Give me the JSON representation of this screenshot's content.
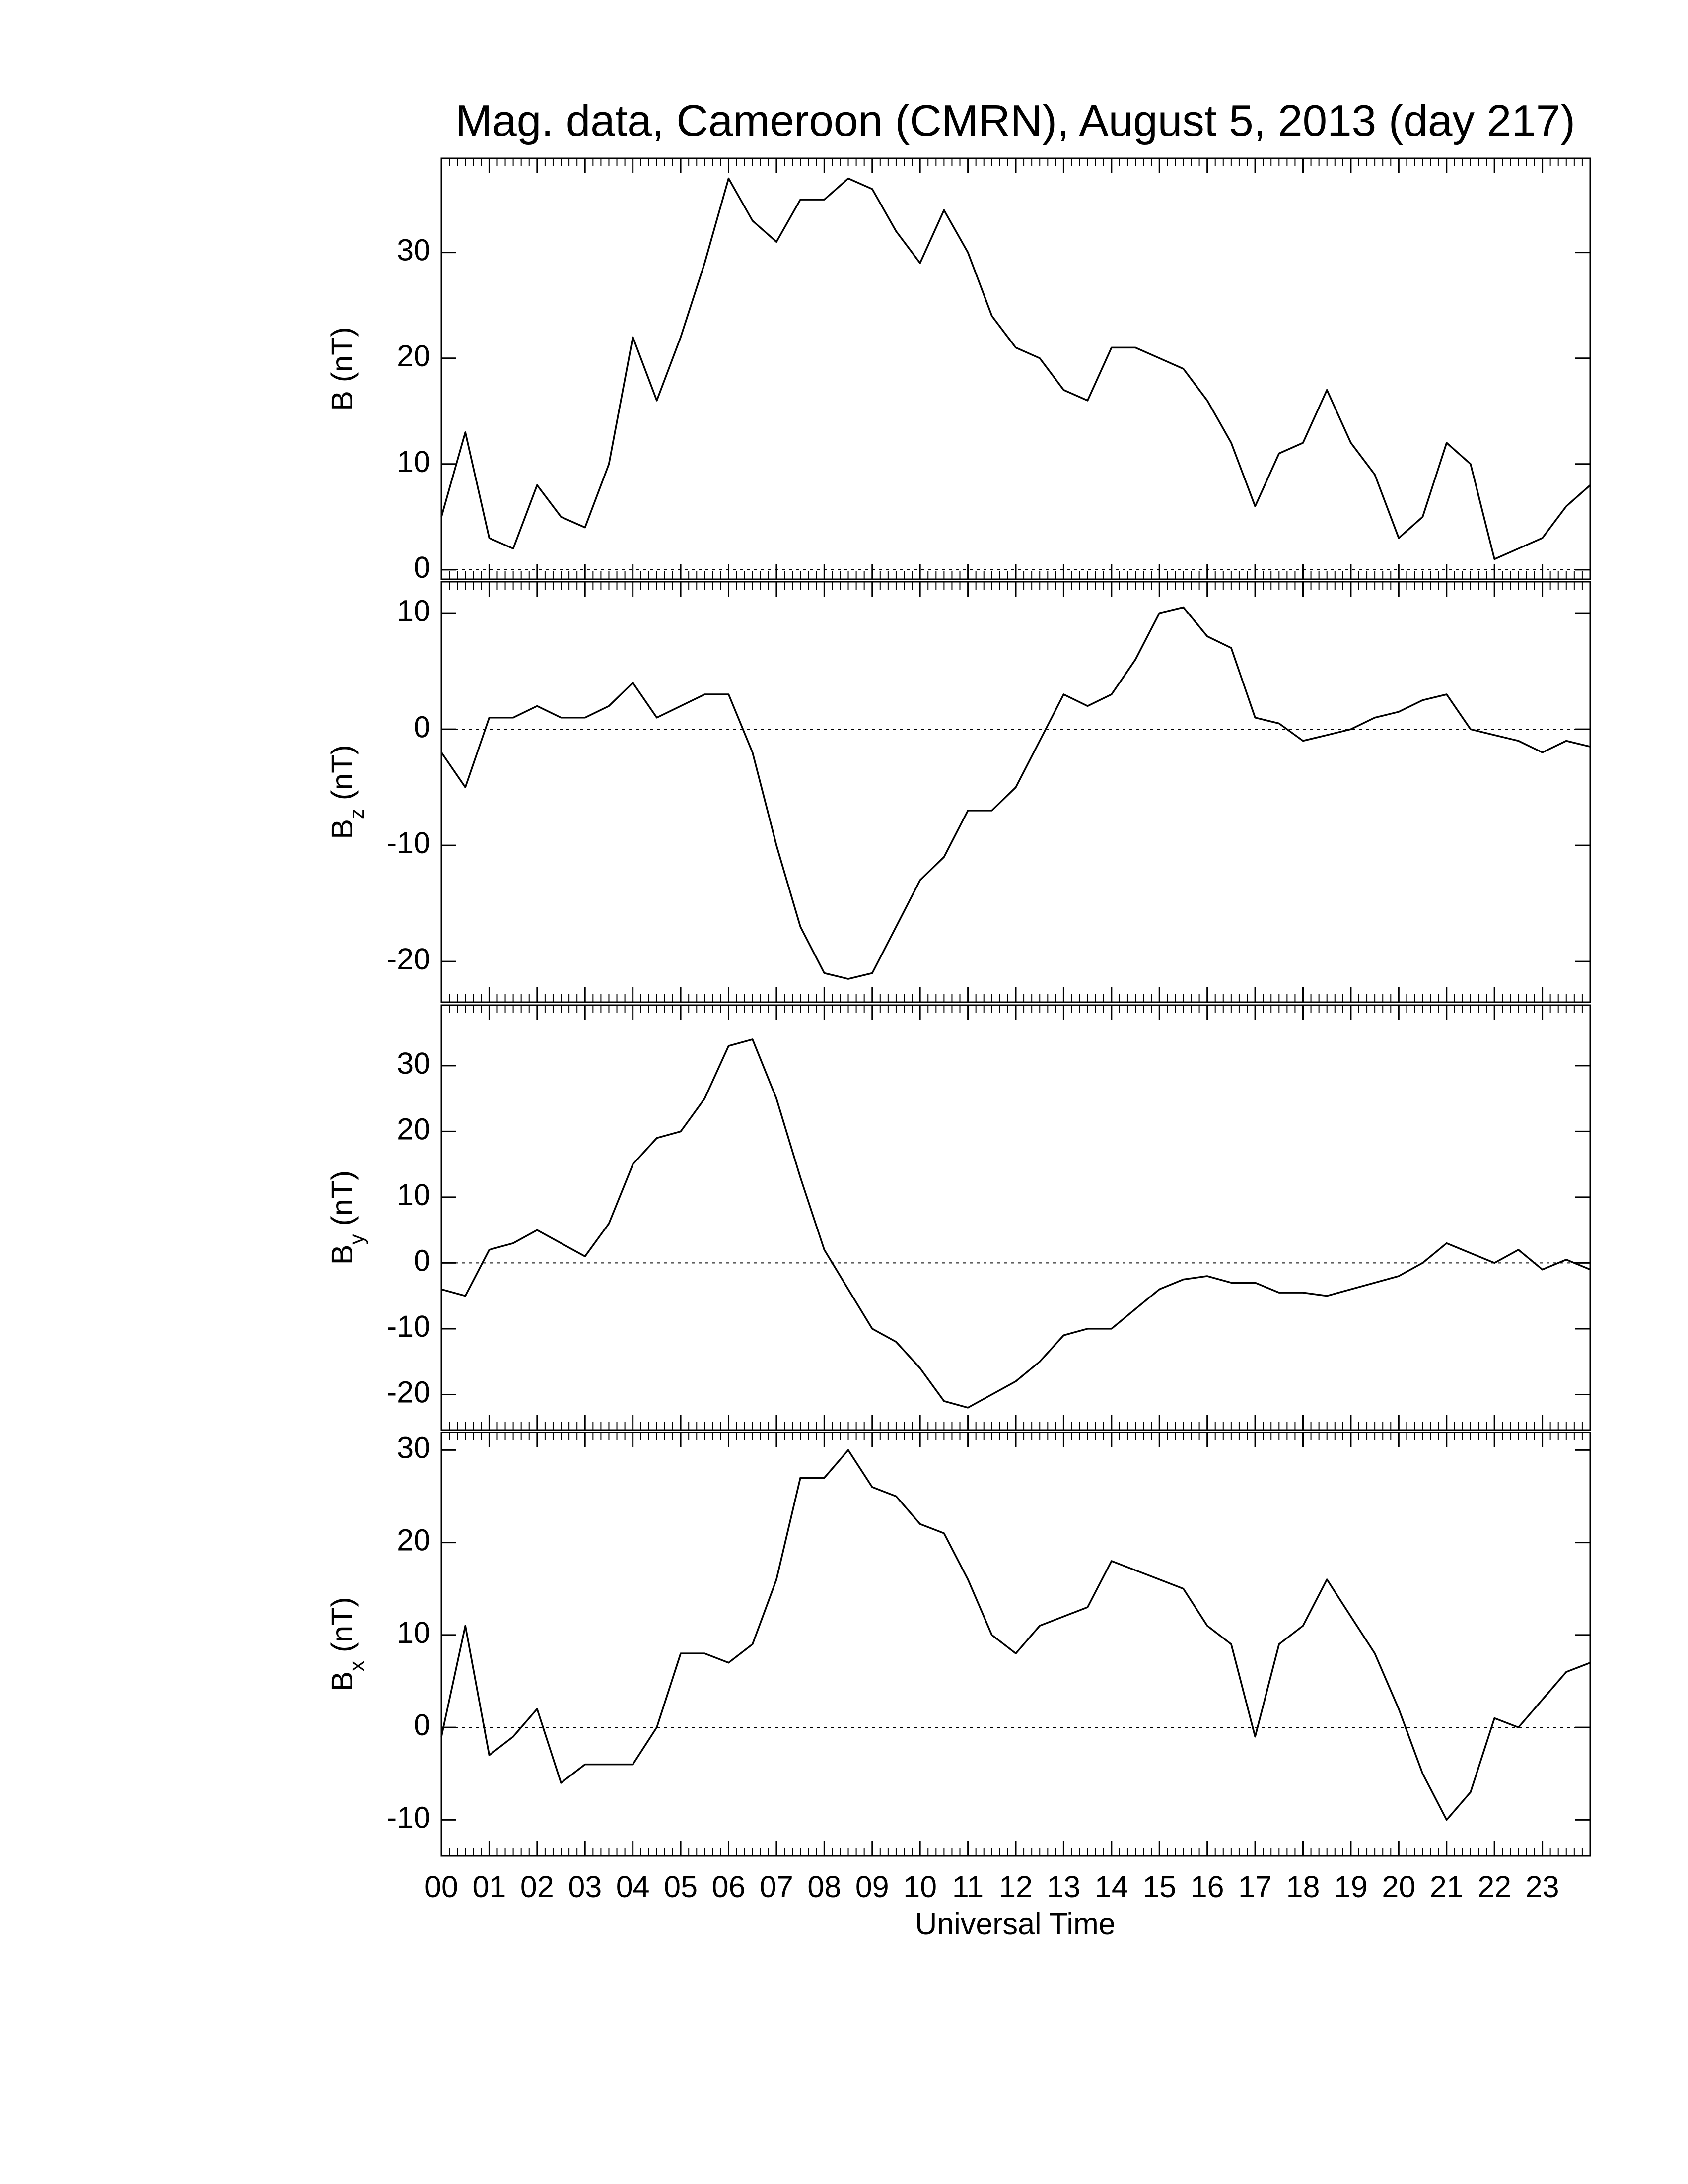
{
  "chart_data": [
    {
      "type": "line",
      "title": "Mag. data, Cameroon (CMRN), August 5, 2013 (day 217)",
      "ylabel": "B (nT)",
      "color": "#000000",
      "hline": 0,
      "x": [
        0,
        0.5,
        1,
        1.5,
        2,
        2.5,
        3,
        3.5,
        4,
        4.5,
        5,
        5.5,
        6,
        6.5,
        7,
        7.5,
        8,
        8.5,
        9,
        9.5,
        10,
        10.5,
        11,
        11.5,
        12,
        12.5,
        13,
        13.5,
        14,
        14.5,
        15,
        15.5,
        16,
        16.5,
        17,
        17.5,
        18,
        18.5,
        19,
        19.5,
        20,
        20.5,
        21,
        21.5,
        22,
        22.5,
        23,
        23.5,
        24
      ],
      "values": [
        5,
        13,
        3,
        2,
        8,
        5,
        4,
        10,
        22,
        16,
        22,
        29,
        37,
        33,
        31,
        35,
        35,
        37,
        36,
        32,
        29,
        34,
        30,
        24,
        21,
        20,
        17,
        16,
        21,
        21,
        20,
        19,
        16,
        12,
        6,
        11,
        12,
        17,
        12,
        9,
        3,
        5,
        12,
        10,
        1,
        2,
        3,
        6,
        8
      ],
      "xlim": [
        0,
        24
      ],
      "ylim": [
        -0.9,
        38.9
      ],
      "yticks": [
        0,
        10,
        20,
        30
      ]
    },
    {
      "type": "line",
      "ylabel": "B",
      "ylabel_sub": "z",
      "ylabel_unit": "(nT)",
      "color": "#000000",
      "hline": 0,
      "x": [
        0,
        0.5,
        1,
        1.5,
        2,
        2.5,
        3,
        3.5,
        4,
        4.5,
        5,
        5.5,
        6,
        6.5,
        7,
        7.5,
        8,
        8.5,
        9,
        9.5,
        10,
        10.5,
        11,
        11.5,
        12,
        12.5,
        13,
        13.5,
        14,
        14.5,
        15,
        15.5,
        16,
        16.5,
        17,
        17.5,
        18,
        18.5,
        19,
        19.5,
        20,
        20.5,
        21,
        21.5,
        22,
        22.5,
        23,
        23.5,
        24
      ],
      "values": [
        -2,
        -5,
        1,
        1,
        2,
        1,
        1,
        2,
        4,
        1,
        2,
        3,
        3,
        -2,
        -10,
        -17,
        -21,
        -21.5,
        -21,
        -17,
        -13,
        -11,
        -7,
        -7,
        -5,
        -1,
        3,
        2,
        3,
        6,
        10,
        10.5,
        8,
        7,
        1,
        0.5,
        -1,
        -0.5,
        0,
        1,
        1.5,
        2.5,
        3,
        0,
        -0.5,
        -1,
        -2,
        -1,
        -1.5
      ],
      "xlim": [
        0,
        24
      ],
      "ylim": [
        -23.5,
        12.7
      ],
      "yticks": [
        -20,
        -10,
        0,
        10
      ]
    },
    {
      "type": "line",
      "ylabel": "B",
      "ylabel_sub": "y",
      "ylabel_unit": "(nT)",
      "color": "#000000",
      "hline": 0,
      "x": [
        0,
        0.5,
        1,
        1.5,
        2,
        2.5,
        3,
        3.5,
        4,
        4.5,
        5,
        5.5,
        6,
        6.5,
        7,
        7.5,
        8,
        8.5,
        9,
        9.5,
        10,
        10.5,
        11,
        11.5,
        12,
        12.5,
        13,
        13.5,
        14,
        14.5,
        15,
        15.5,
        16,
        16.5,
        17,
        17.5,
        18,
        18.5,
        19,
        19.5,
        20,
        20.5,
        21,
        21.5,
        22,
        22.5,
        23,
        23.5,
        24
      ],
      "values": [
        -4,
        -5,
        2,
        3,
        5,
        3,
        1,
        6,
        15,
        19,
        20,
        25,
        33,
        34,
        25,
        13,
        2,
        -4,
        -10,
        -12,
        -16,
        -21,
        -22,
        -20,
        -18,
        -15,
        -11,
        -10,
        -10,
        -7,
        -4,
        -2.5,
        -2,
        -3,
        -3,
        -4.5,
        -4.5,
        -5,
        -4,
        -3,
        -2,
        0,
        3,
        1.5,
        0,
        2,
        -1,
        0.5,
        -1
      ],
      "xlim": [
        0,
        24
      ],
      "ylim": [
        -25.4,
        39.2
      ],
      "yticks": [
        -20,
        -10,
        0,
        10,
        20,
        30
      ]
    },
    {
      "type": "line",
      "ylabel": "B",
      "ylabel_sub": "x",
      "ylabel_unit": "(nT)",
      "xlabel": "Universal Time",
      "color": "#000000",
      "hline": 0,
      "x": [
        0,
        0.5,
        1,
        1.5,
        2,
        2.5,
        3,
        3.5,
        4,
        4.5,
        5,
        5.5,
        6,
        6.5,
        7,
        7.5,
        8,
        8.5,
        9,
        9.5,
        10,
        10.5,
        11,
        11.5,
        12,
        12.5,
        13,
        13.5,
        14,
        14.5,
        15,
        15.5,
        16,
        16.5,
        17,
        17.5,
        18,
        18.5,
        19,
        19.5,
        20,
        20.5,
        21,
        21.5,
        22,
        22.5,
        23,
        23.5,
        24
      ],
      "values": [
        -1,
        11,
        -3,
        -1,
        2,
        -6,
        -4,
        -4,
        -4,
        0,
        8,
        8,
        7,
        9,
        16,
        27,
        27,
        30,
        26,
        25,
        22,
        21,
        16,
        10,
        8,
        11,
        12,
        13,
        18,
        17,
        16,
        15,
        11,
        9,
        -1,
        9,
        11,
        16,
        12,
        8,
        2,
        -5,
        -10,
        -7,
        1,
        0,
        3,
        6,
        7
      ],
      "xlim": [
        0,
        24
      ],
      "ylim": [
        -13.9,
        31.9
      ],
      "yticks": [
        -10,
        0,
        10,
        20,
        30
      ],
      "xticks": [
        {
          "value": 0,
          "label": "00"
        },
        {
          "value": 1,
          "label": "01"
        },
        {
          "value": 2,
          "label": "02"
        },
        {
          "value": 3,
          "label": "03"
        },
        {
          "value": 4,
          "label": "04"
        },
        {
          "value": 5,
          "label": "05"
        },
        {
          "value": 6,
          "label": "06"
        },
        {
          "value": 7,
          "label": "07"
        },
        {
          "value": 8,
          "label": "08"
        },
        {
          "value": 9,
          "label": "09"
        },
        {
          "value": 10,
          "label": "10"
        },
        {
          "value": 11,
          "label": "11"
        },
        {
          "value": 12,
          "label": "12"
        },
        {
          "value": 13,
          "label": "13"
        },
        {
          "value": 14,
          "label": "14"
        },
        {
          "value": 15,
          "label": "15"
        },
        {
          "value": 16,
          "label": "16"
        },
        {
          "value": 17,
          "label": "17"
        },
        {
          "value": 18,
          "label": "18"
        },
        {
          "value": 19,
          "label": "19"
        },
        {
          "value": 20,
          "label": "20"
        },
        {
          "value": 21,
          "label": "21"
        },
        {
          "value": 22,
          "label": "22"
        },
        {
          "value": 23,
          "label": "23"
        }
      ]
    }
  ]
}
